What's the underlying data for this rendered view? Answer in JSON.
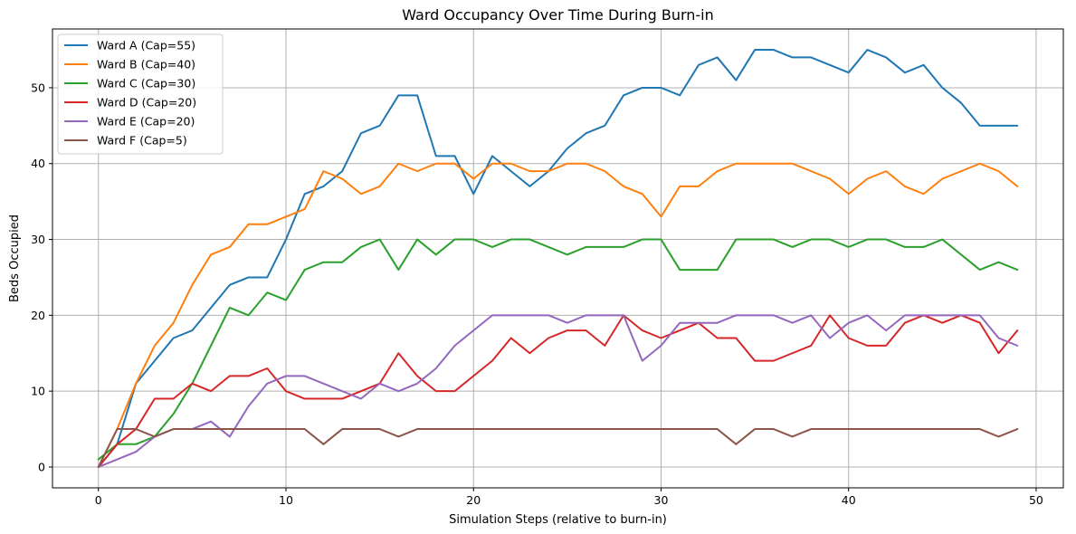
{
  "chart_data": {
    "type": "line",
    "title": "Ward Occupancy Over Time During Burn-in",
    "xlabel": "Simulation Steps (relative to burn-in)",
    "ylabel": "Beds Occupied",
    "xlim": [
      -2.45,
      51.45
    ],
    "ylim": [
      -2.75,
      57.75
    ],
    "xticks": [
      0,
      10,
      20,
      30,
      40,
      50
    ],
    "yticks": [
      0,
      10,
      20,
      30,
      40,
      50
    ],
    "grid": true,
    "legend_position": "top-left",
    "x": [
      0,
      1,
      2,
      3,
      4,
      5,
      6,
      7,
      8,
      9,
      10,
      11,
      12,
      13,
      14,
      15,
      16,
      17,
      18,
      19,
      20,
      21,
      22,
      23,
      24,
      25,
      26,
      27,
      28,
      29,
      30,
      31,
      32,
      33,
      34,
      35,
      36,
      37,
      38,
      39,
      40,
      41,
      42,
      43,
      44,
      45,
      46,
      47,
      48,
      49
    ],
    "series": [
      {
        "name": "Ward A (Cap=55)",
        "color": "#1f77b4",
        "values": [
          0,
          3,
          11,
          14,
          17,
          18,
          21,
          24,
          25,
          25,
          30,
          36,
          37,
          39,
          44,
          45,
          49,
          49,
          41,
          41,
          36,
          41,
          39,
          37,
          39,
          42,
          44,
          45,
          49,
          50,
          50,
          49,
          53,
          54,
          51,
          55,
          55,
          54,
          54,
          53,
          52,
          55,
          54,
          52,
          53,
          50,
          48,
          45,
          45,
          45
        ]
      },
      {
        "name": "Ward B (Cap=40)",
        "color": "#ff7f0e",
        "values": [
          0,
          5,
          11,
          16,
          19,
          24,
          28,
          29,
          32,
          32,
          33,
          34,
          39,
          38,
          36,
          37,
          40,
          39,
          40,
          40,
          38,
          40,
          40,
          39,
          39,
          40,
          40,
          39,
          37,
          36,
          33,
          37,
          37,
          39,
          40,
          40,
          40,
          40,
          39,
          38,
          36,
          38,
          39,
          37,
          36,
          38,
          39,
          40,
          39,
          37
        ]
      },
      {
        "name": "Ward C (Cap=30)",
        "color": "#2ca02c",
        "values": [
          1,
          3,
          3,
          4,
          7,
          11,
          16,
          21,
          20,
          23,
          22,
          26,
          27,
          27,
          29,
          30,
          26,
          30,
          28,
          30,
          30,
          29,
          30,
          30,
          29,
          28,
          29,
          29,
          29,
          30,
          30,
          26,
          26,
          26,
          30,
          30,
          30,
          29,
          30,
          30,
          29,
          30,
          30,
          29,
          29,
          30,
          28,
          26,
          27,
          26
        ]
      },
      {
        "name": "Ward D (Cap=20)",
        "color": "#d62728",
        "values": [
          0,
          3,
          5,
          9,
          9,
          11,
          10,
          12,
          12,
          13,
          10,
          9,
          9,
          9,
          10,
          11,
          15,
          12,
          10,
          10,
          12,
          14,
          17,
          15,
          17,
          18,
          18,
          16,
          20,
          18,
          17,
          18,
          19,
          17,
          17,
          14,
          14,
          15,
          16,
          20,
          17,
          16,
          16,
          19,
          20,
          19,
          20,
          19,
          15,
          18
        ]
      },
      {
        "name": "Ward E (Cap=20)",
        "color": "#9467bd",
        "values": [
          0,
          1,
          2,
          4,
          5,
          5,
          6,
          4,
          8,
          11,
          12,
          12,
          11,
          10,
          9,
          11,
          10,
          11,
          13,
          16,
          18,
          20,
          20,
          20,
          20,
          19,
          20,
          20,
          20,
          14,
          16,
          19,
          19,
          19,
          20,
          20,
          20,
          19,
          20,
          17,
          19,
          20,
          18,
          20,
          20,
          20,
          20,
          20,
          17,
          16
        ]
      },
      {
        "name": "Ward F (Cap=5)",
        "color": "#8c564b",
        "values": [
          0,
          5,
          5,
          4,
          5,
          5,
          5,
          5,
          5,
          5,
          5,
          5,
          3,
          5,
          5,
          5,
          4,
          5,
          5,
          5,
          5,
          5,
          5,
          5,
          5,
          5,
          5,
          5,
          5,
          5,
          5,
          5,
          5,
          5,
          3,
          5,
          5,
          4,
          5,
          5,
          5,
          5,
          5,
          5,
          5,
          5,
          5,
          5,
          4,
          5
        ]
      }
    ]
  }
}
